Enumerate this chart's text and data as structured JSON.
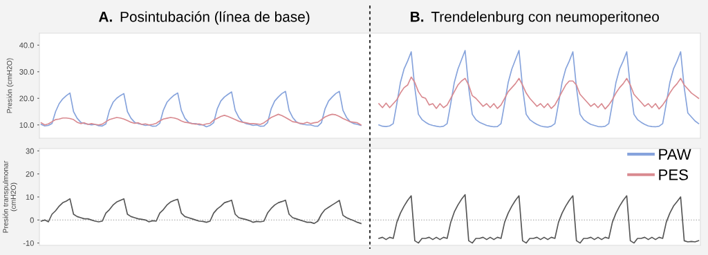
{
  "chart_data": [
    {
      "type": "line",
      "annotations": [
        "A. Posintubación (línea de base)",
        "B. Trendelenburg con neumoperitoneo"
      ],
      "ylabel": "Presión (cmH2O)",
      "ylim": [
        5,
        44.5
      ],
      "yticks": [
        {
          "value": 10,
          "label": "10.0"
        },
        {
          "value": 20,
          "label": "20.0"
        },
        {
          "value": 30,
          "label": "30.0"
        },
        {
          "value": 40,
          "label": "40.0"
        }
      ],
      "tick_labels": "y",
      "legend": "bottom right",
      "categories": [
        null,
        null,
        null,
        null,
        null,
        null,
        null,
        null,
        null,
        null,
        null,
        null,
        null,
        null,
        null,
        null,
        null,
        null,
        null,
        null,
        null,
        null,
        null,
        null,
        null,
        null,
        null,
        null,
        null,
        null,
        null,
        null,
        null,
        null,
        null,
        null,
        null,
        null,
        null,
        null,
        null,
        null,
        null,
        null,
        null,
        null,
        null,
        null,
        null,
        null,
        null,
        null,
        null,
        null,
        null,
        null,
        null,
        null,
        null,
        null,
        null,
        null,
        null,
        null,
        null,
        null,
        null,
        null,
        null,
        null,
        null,
        null,
        null,
        null,
        null,
        null,
        null,
        null,
        null,
        null,
        null,
        null,
        null,
        null,
        null,
        null,
        null,
        null,
        null,
        null,
        null,
        null,
        null,
        null,
        null,
        null,
        null,
        null,
        null,
        null,
        null,
        null,
        null,
        null,
        null,
        null,
        null,
        null,
        null,
        null,
        null,
        null,
        null,
        null,
        null,
        null,
        null,
        null,
        null,
        null,
        null,
        null,
        null,
        null,
        null,
        null,
        null,
        null,
        null,
        null,
        null,
        null,
        null,
        null,
        null,
        null,
        null,
        null,
        null,
        null,
        null,
        null,
        null,
        null,
        null,
        null,
        null,
        null,
        null,
        null,
        null,
        null,
        null,
        null,
        null,
        null,
        null,
        null,
        null,
        null,
        null,
        null,
        null,
        null,
        null,
        null,
        null,
        null,
        null,
        null,
        null,
        null,
        null,
        null,
        null,
        null,
        null,
        null,
        null,
        null,
        null,
        null,
        null,
        null
      ],
      "series": [
        {
          "name": "PAW",
          "color": "#86a3dc",
          "values": [
            10.2,
            9.6,
            9.8,
            10.5,
            15,
            18,
            19.8,
            21,
            22,
            15,
            12.5,
            11,
            10.5,
            10.3,
            10,
            10.2,
            9.7,
            9.6,
            10.4,
            15.5,
            18.5,
            20,
            21,
            21.8,
            15,
            12.5,
            11,
            10.5,
            10.2,
            9.8,
            10,
            9.5,
            9.6,
            10.6,
            15.5,
            18.5,
            20,
            21.2,
            22,
            15.5,
            12.5,
            11,
            10.5,
            10.5,
            10,
            10,
            9.3,
            9.8,
            10.8,
            16,
            19,
            20.5,
            21.5,
            22.4,
            15.5,
            12.8,
            11.2,
            10.5,
            10.2,
            9.8,
            10,
            9.5,
            9.6,
            10.8,
            16,
            19,
            20.5,
            21.8,
            22.6,
            15.5,
            12.8,
            11.2,
            10.5,
            10.2,
            10,
            10,
            9.6,
            9.5,
            10.8,
            16,
            19,
            20.5,
            21.8,
            22.6,
            15.5,
            12.8,
            11.2,
            10.5,
            10.2,
            9.8,
            null,
            null,
            null,
            null,
            10,
            9.5,
            9.4,
            9.6,
            10.5,
            18,
            26,
            31,
            34,
            37.5,
            24,
            14,
            12,
            11,
            10.2,
            9.8,
            9.5,
            9.3,
            9.5,
            10.5,
            18,
            26,
            31,
            34.5,
            38,
            24,
            14,
            12,
            11,
            10.4,
            9.8,
            9.5,
            9.3,
            9.4,
            10.5,
            18,
            26,
            31,
            34.5,
            38,
            24,
            14,
            12,
            11,
            10.2,
            9.6,
            9.3,
            9.2,
            9.5,
            10.5,
            18,
            26,
            31,
            34,
            37.5,
            24,
            14,
            12,
            11,
            10.2,
            9.8,
            9.4,
            9.3,
            9.5,
            10.5,
            18,
            26,
            31,
            34,
            37.5,
            24,
            14,
            12,
            11,
            10.2,
            9.6,
            9.4,
            9.3,
            9.5,
            10.5,
            18,
            26,
            31,
            34,
            37.5,
            24,
            14.5,
            13,
            11.5,
            10.5
          ]
        },
        {
          "name": "PES",
          "color": "#d98a90",
          "values": [
            10.8,
            10,
            10.4,
            11.2,
            12,
            12.2,
            12.6,
            12.6,
            12.4,
            12,
            11,
            10.5,
            10.8,
            10.2,
            10.5,
            10.2,
            10,
            10.3,
            11.2,
            12,
            12.4,
            12.8,
            12.6,
            12.2,
            11.6,
            11,
            10.6,
            10.8,
            10.2,
            10.4,
            10,
            10.2,
            10.6,
            11.5,
            12.2,
            12.5,
            12.8,
            12.6,
            12.2,
            11.5,
            11,
            10.8,
            10.5,
            10.3,
            10.4,
            10,
            10.4,
            10.6,
            11.8,
            12.5,
            13.2,
            13.6,
            13.2,
            12.6,
            12,
            11.4,
            11,
            10.8,
            10.5,
            10.5,
            10.4,
            10.2,
            10.8,
            11.8,
            12.8,
            13.4,
            14,
            13.5,
            12.8,
            12,
            11.2,
            11,
            10.6,
            10.5,
            11,
            10.5,
            10.8,
            11,
            12,
            13,
            13.6,
            14,
            13.8,
            13.2,
            12.4,
            11.8,
            11.2,
            11,
            10.8,
            10,
            null,
            null,
            null,
            null,
            18,
            16.5,
            18.2,
            16.5,
            18,
            19.5,
            22,
            24,
            25,
            28,
            26,
            22.5,
            20.5,
            20,
            17.5,
            18,
            16.2,
            18,
            16.5,
            17.5,
            20,
            22.5,
            25,
            26.5,
            27.5,
            25,
            21,
            20,
            18.5,
            17,
            18,
            16.5,
            18,
            16.2,
            17.5,
            20,
            22.5,
            24,
            25.5,
            27.5,
            25,
            22,
            20,
            18.5,
            17,
            18,
            16.5,
            18,
            16.2,
            17.5,
            20,
            22.5,
            25,
            26.5,
            26.5,
            25,
            21.5,
            20,
            18.5,
            17,
            18,
            16.5,
            18,
            16,
            17.5,
            19.5,
            22,
            24,
            25.5,
            27.5,
            25,
            21.5,
            20,
            18.5,
            17,
            18,
            16.5,
            18,
            16,
            17.5,
            19.5,
            22,
            24,
            25.5,
            27.5,
            25,
            23.5,
            22,
            21,
            20
          ]
        }
      ]
    },
    {
      "type": "line",
      "ylabel": "Presión transpulmonar\n(cmH2O)",
      "ylim": [
        -11,
        31
      ],
      "yticks": [
        -10,
        0,
        10,
        20,
        30
      ],
      "tick_labels": "y",
      "ref_lines": [
        {
          "axis": "y",
          "value": 0,
          "color": "#aaaaaa",
          "line_style": "dotted"
        }
      ],
      "categories": [
        null,
        null,
        null,
        null,
        null,
        null,
        null,
        null,
        null,
        null,
        null,
        null,
        null,
        null,
        null,
        null,
        null,
        null,
        null,
        null,
        null,
        null,
        null,
        null,
        null,
        null,
        null,
        null,
        null,
        null,
        null,
        null,
        null,
        null,
        null,
        null,
        null,
        null,
        null,
        null,
        null,
        null,
        null,
        null,
        null,
        null,
        null,
        null,
        null,
        null,
        null,
        null,
        null,
        null,
        null,
        null,
        null,
        null,
        null,
        null,
        null,
        null,
        null,
        null,
        null,
        null,
        null,
        null,
        null,
        null,
        null,
        null,
        null,
        null,
        null,
        null,
        null,
        null,
        null,
        null,
        null,
        null,
        null,
        null,
        null,
        null,
        null,
        null,
        null,
        null,
        null,
        null,
        null,
        null,
        null,
        null,
        null,
        null,
        null,
        null,
        null,
        null,
        null,
        null,
        null,
        null,
        null,
        null,
        null,
        null,
        null,
        null,
        null,
        null,
        null,
        null,
        null,
        null,
        null,
        null,
        null,
        null,
        null,
        null,
        null,
        null,
        null,
        null,
        null,
        null,
        null,
        null,
        null,
        null,
        null,
        null,
        null,
        null,
        null,
        null,
        null,
        null,
        null,
        null,
        null,
        null,
        null,
        null,
        null,
        null,
        null,
        null,
        null,
        null,
        null,
        null,
        null,
        null,
        null,
        null,
        null,
        null,
        null,
        null,
        null,
        null,
        null,
        null,
        null,
        null,
        null,
        null,
        null,
        null,
        null,
        null,
        null,
        null,
        null,
        null,
        null,
        null,
        null,
        null
      ],
      "series": [
        {
          "color": "#555555",
          "values": [
            -0.5,
            0,
            -0.8,
            2.5,
            4,
            6,
            7.5,
            8.2,
            9.2,
            2.5,
            1.5,
            1,
            0.5,
            0.5,
            0,
            -0.5,
            -0.8,
            -0.5,
            3,
            4.5,
            6.5,
            7.8,
            8.5,
            9.2,
            2.5,
            1.5,
            1,
            0.5,
            0.3,
            0,
            -0.8,
            -0.3,
            -0.5,
            3,
            4.5,
            6.5,
            7.8,
            8.5,
            9,
            3,
            1.5,
            1,
            0.5,
            0,
            -0.5,
            -0.6,
            -1,
            -0.5,
            3,
            4.8,
            6,
            7.5,
            8,
            8.6,
            2.5,
            1,
            0.6,
            0.2,
            -0.3,
            -1,
            -0.6,
            -0.8,
            -0.5,
            3,
            5,
            6.5,
            7.5,
            8,
            8.6,
            2.5,
            1,
            0.5,
            0,
            -0.5,
            -1,
            -1,
            -1.5,
            -0.5,
            2.5,
            4.5,
            5.5,
            6.5,
            7.5,
            8.5,
            2,
            1,
            0.3,
            -0.3,
            -1,
            -1.5,
            null,
            null,
            null,
            null,
            -8,
            -7.5,
            -8.5,
            -7.5,
            -8,
            -1,
            3,
            6,
            8.5,
            10.5,
            -9,
            -10,
            -8,
            -8,
            -7.5,
            -8.5,
            -7.5,
            -8.5,
            -7.5,
            -8,
            -1,
            3.5,
            6.5,
            9,
            11,
            -9,
            -10,
            -8,
            -8,
            -7.5,
            -8.5,
            -7.5,
            -8.5,
            -7.5,
            -8,
            -1,
            3,
            6,
            8.5,
            10.5,
            -9,
            -10,
            -8,
            -8,
            -7.5,
            -8.5,
            -7.5,
            -8.5,
            -7.5,
            -8,
            -1,
            3,
            6,
            8.5,
            10.5,
            -9,
            -10,
            -8,
            -8,
            -7.5,
            -8.5,
            -7.5,
            -8.5,
            -7.5,
            -8,
            -1,
            3,
            6,
            8.5,
            10.5,
            -9,
            -10,
            -8,
            -8,
            -7.5,
            -8.5,
            -7.5,
            -8.5,
            -7.5,
            -8,
            -1,
            3,
            6,
            8,
            10,
            -9,
            -9.5,
            -9.3,
            -9.5,
            -9
          ]
        }
      ]
    }
  ]
}
